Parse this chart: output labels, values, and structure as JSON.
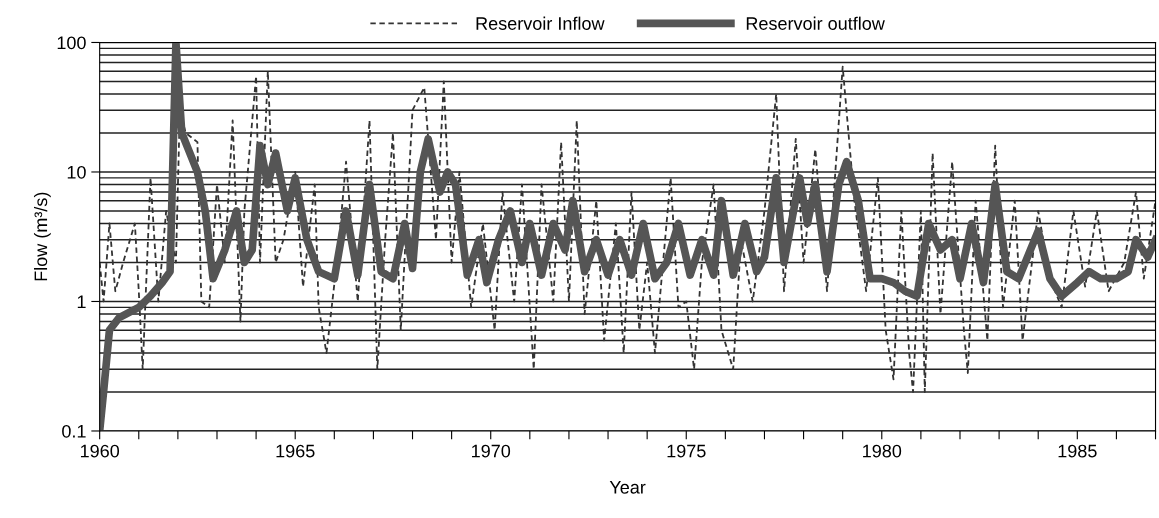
{
  "chart_data": {
    "type": "line",
    "xlabel": "Year",
    "ylabel": "Flow (m³/s)",
    "log": "y",
    "grid": "y",
    "legend": "top",
    "xlim": [
      1960,
      1987
    ],
    "ylim": [
      0.1,
      100
    ],
    "yticks": [
      0.1,
      1,
      10,
      100
    ],
    "xticks": [
      1960,
      {
        "value": 1961,
        "label": null
      },
      {
        "value": 1962,
        "label": null
      },
      {
        "value": 1963,
        "label": null
      },
      {
        "value": 1964,
        "label": null
      },
      1965,
      {
        "value": 1966,
        "label": null
      },
      {
        "value": 1967,
        "label": null
      },
      {
        "value": 1968,
        "label": null
      },
      {
        "value": 1969,
        "label": null
      },
      1970,
      {
        "value": 1971,
        "label": null
      },
      {
        "value": 1972,
        "label": null
      },
      {
        "value": 1973,
        "label": null
      },
      {
        "value": 1974,
        "label": null
      },
      1975,
      {
        "value": 1976,
        "label": null
      },
      {
        "value": 1977,
        "label": null
      },
      {
        "value": 1978,
        "label": null
      },
      {
        "value": 1979,
        "label": null
      },
      1980,
      {
        "value": 1981,
        "label": null
      },
      {
        "value": 1982,
        "label": null
      },
      {
        "value": 1983,
        "label": null
      },
      {
        "value": 1984,
        "label": null
      },
      1985,
      {
        "value": 1986,
        "label": null
      },
      {
        "value": 1987,
        "label": null
      }
    ],
    "series": [
      {
        "name": "Reservoir Inflow",
        "color": "#333333",
        "line_style": "dashed",
        "x": [
          1960.0,
          1960.1,
          1960.25,
          1960.4,
          1960.6,
          1960.9,
          1961.0,
          1961.1,
          1961.3,
          1961.5,
          1961.7,
          1961.95,
          1962.05,
          1962.2,
          1962.5,
          1962.6,
          1962.8,
          1963.0,
          1963.2,
          1963.4,
          1963.6,
          1963.7,
          1964.0,
          1964.1,
          1964.3,
          1964.5,
          1964.7,
          1965.0,
          1965.2,
          1965.5,
          1965.6,
          1965.8,
          1966.1,
          1966.3,
          1966.6,
          1966.9,
          1967.1,
          1967.3,
          1967.5,
          1967.7,
          1968.0,
          1968.3,
          1968.6,
          1968.8,
          1969.0,
          1969.2,
          1969.5,
          1969.8,
          1970.1,
          1970.3,
          1970.6,
          1970.8,
          1971.1,
          1971.3,
          1971.6,
          1971.8,
          1972.0,
          1972.2,
          1972.4,
          1972.7,
          1972.9,
          1973.2,
          1973.4,
          1973.6,
          1973.8,
          1974.0,
          1974.2,
          1974.6,
          1974.8,
          1975.0,
          1975.2,
          1975.4,
          1975.7,
          1975.9,
          1976.2,
          1976.4,
          1976.7,
          1977.0,
          1977.3,
          1977.5,
          1977.8,
          1978.0,
          1978.3,
          1978.6,
          1979.0,
          1979.3,
          1979.6,
          1979.9,
          1980.1,
          1980.3,
          1980.5,
          1980.7,
          1980.8,
          1981.0,
          1981.1,
          1981.3,
          1981.5,
          1981.8,
          1982.1,
          1982.2,
          1982.4,
          1982.7,
          1982.9,
          1983.1,
          1983.4,
          1983.6,
          1984.0,
          1984.3,
          1984.6,
          1984.9,
          1985.2,
          1985.5,
          1985.8,
          1986.2,
          1986.5,
          1986.7,
          1987.0
        ],
        "values": [
          2,
          1,
          4,
          1.2,
          2,
          4,
          1.2,
          0.3,
          9,
          1,
          5,
          2,
          30,
          20,
          17,
          1,
          0.9,
          8,
          2,
          25,
          0.7,
          5,
          55,
          2,
          60,
          2,
          3,
          10,
          1.3,
          8,
          0.9,
          0.4,
          2.5,
          12,
          1,
          25,
          0.3,
          3,
          20,
          0.6,
          30,
          45,
          3,
          50,
          2,
          10,
          0.9,
          4,
          0.6,
          7,
          1,
          8,
          0.3,
          8,
          1,
          17,
          1,
          25,
          0.8,
          6,
          0.5,
          4,
          0.4,
          7,
          0.6,
          2,
          0.4,
          9,
          0.9,
          1,
          0.3,
          2,
          8,
          0.6,
          0.3,
          3,
          1,
          5,
          40,
          1.2,
          18,
          2,
          15,
          1.2,
          65,
          6,
          1.2,
          9,
          0.6,
          0.25,
          5,
          0.4,
          0.2,
          5,
          0.2,
          14,
          0.8,
          12,
          0.6,
          0.28,
          6,
          0.5,
          16,
          0.9,
          6,
          0.5,
          5,
          1.5,
          0.9,
          5,
          1.3,
          5,
          1.2,
          2,
          7,
          1.5,
          6
        ]
      },
      {
        "name": "Reservoir outflow",
        "color": "#555555",
        "line_style": "solid",
        "x": [
          1960.0,
          1960.1,
          1960.25,
          1960.5,
          1961.0,
          1961.3,
          1961.6,
          1961.8,
          1961.95,
          1962.1,
          1962.5,
          1962.7,
          1962.9,
          1963.2,
          1963.5,
          1963.7,
          1963.9,
          1964.1,
          1964.3,
          1964.5,
          1964.8,
          1965.0,
          1965.3,
          1965.6,
          1966.0,
          1966.3,
          1966.6,
          1966.9,
          1967.2,
          1967.5,
          1967.8,
          1968.0,
          1968.2,
          1968.4,
          1968.7,
          1968.9,
          1969.1,
          1969.4,
          1969.7,
          1969.9,
          1970.2,
          1970.5,
          1970.8,
          1971.0,
          1971.3,
          1971.6,
          1971.9,
          1972.1,
          1972.4,
          1972.7,
          1973.0,
          1973.3,
          1973.6,
          1973.9,
          1974.2,
          1974.5,
          1974.8,
          1975.1,
          1975.4,
          1975.7,
          1975.9,
          1976.2,
          1976.5,
          1976.8,
          1977.0,
          1977.3,
          1977.5,
          1977.9,
          1978.1,
          1978.3,
          1978.6,
          1978.9,
          1979.1,
          1979.4,
          1979.7,
          1980.0,
          1980.3,
          1980.6,
          1980.9,
          1981.2,
          1981.5,
          1981.8,
          1982.0,
          1982.3,
          1982.6,
          1982.9,
          1983.2,
          1983.5,
          1983.8,
          1984.0,
          1984.3,
          1984.6,
          1985.0,
          1985.3,
          1985.6,
          1986.0,
          1986.3,
          1986.5,
          1986.8,
          1987.0
        ],
        "values": [
          0.1,
          0.2,
          0.6,
          0.75,
          0.9,
          1.1,
          1.4,
          1.7,
          100,
          20,
          10,
          5,
          1.5,
          2.5,
          5,
          2,
          2.5,
          16,
          8,
          14,
          5,
          9,
          3,
          1.7,
          1.5,
          5,
          1.6,
          8,
          1.7,
          1.5,
          4,
          1.8,
          10,
          18,
          7,
          10,
          8,
          1.6,
          3,
          1.4,
          3,
          5,
          2,
          4,
          1.6,
          4,
          2.5,
          6,
          1.7,
          3,
          1.6,
          3,
          1.6,
          4,
          1.5,
          2,
          4,
          1.6,
          3,
          1.6,
          6,
          1.6,
          4,
          1.7,
          2.2,
          9,
          2,
          9,
          4,
          8,
          1.7,
          8,
          12,
          6,
          1.5,
          1.5,
          1.4,
          1.2,
          1.1,
          4,
          2.5,
          3,
          1.5,
          4,
          1.4,
          8,
          1.7,
          1.5,
          2.5,
          3.5,
          1.5,
          1.1,
          1.4,
          1.7,
          1.5,
          1.5,
          1.7,
          3,
          2.2,
          3
        ]
      }
    ]
  }
}
